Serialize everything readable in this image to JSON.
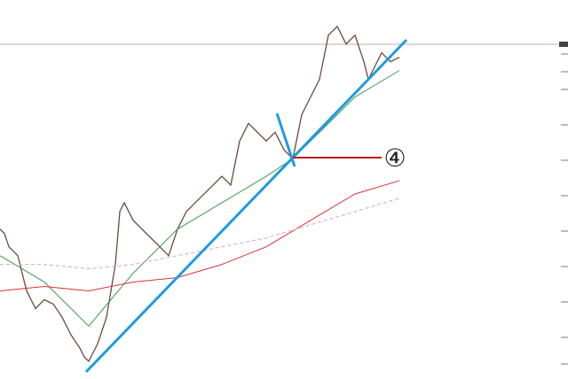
{
  "chart_data": {
    "type": "line",
    "annotation": "④",
    "xlim": [
      0,
      450
    ],
    "ylim": [
      0,
      430
    ],
    "series": [
      {
        "name": null,
        "color": "#6b4a3a",
        "x": [
          0,
          5,
          10,
          20,
          30,
          40,
          50,
          60,
          70,
          80,
          90,
          95,
          100,
          110,
          120,
          130,
          135,
          140,
          150,
          160,
          170,
          180,
          190,
          200,
          210,
          220,
          230,
          240,
          250,
          260,
          270,
          280,
          290,
          300,
          310,
          320,
          330,
          340,
          350,
          360,
          370,
          380,
          390,
          400,
          410,
          415,
          420,
          430,
          440,
          450
        ],
        "values": [
          170,
          165,
          150,
          140,
          100,
          80,
          90,
          85,
          70,
          50,
          35,
          25,
          20,
          40,
          70,
          130,
          190,
          200,
          180,
          170,
          160,
          150,
          140,
          170,
          190,
          200,
          210,
          220,
          230,
          220,
          270,
          290,
          280,
          270,
          280,
          260,
          250,
          300,
          320,
          340,
          390,
          400,
          380,
          390,
          360,
          340,
          350,
          370,
          360,
          365
        ]
      },
      {
        "name": null,
        "color": "#3a9a4a",
        "x": [
          0,
          50,
          100,
          150,
          200,
          250,
          300,
          330,
          350,
          400,
          450
        ],
        "values": [
          140,
          110,
          60,
          120,
          170,
          200,
          230,
          250,
          270,
          320,
          350
        ]
      },
      {
        "name": null,
        "color": "#d83030",
        "x": [
          0,
          50,
          100,
          150,
          200,
          250,
          300,
          350,
          400,
          450
        ],
        "values": [
          100,
          105,
          100,
          110,
          115,
          130,
          150,
          180,
          210,
          225
        ]
      },
      {
        "name": null,
        "color": "#e8a0b0",
        "dashed": true,
        "x": [
          0,
          50,
          100,
          150,
          200,
          250,
          300,
          350,
          400,
          450
        ],
        "values": [
          130,
          130,
          125,
          130,
          140,
          150,
          160,
          175,
          190,
          205
        ]
      }
    ]
  }
}
